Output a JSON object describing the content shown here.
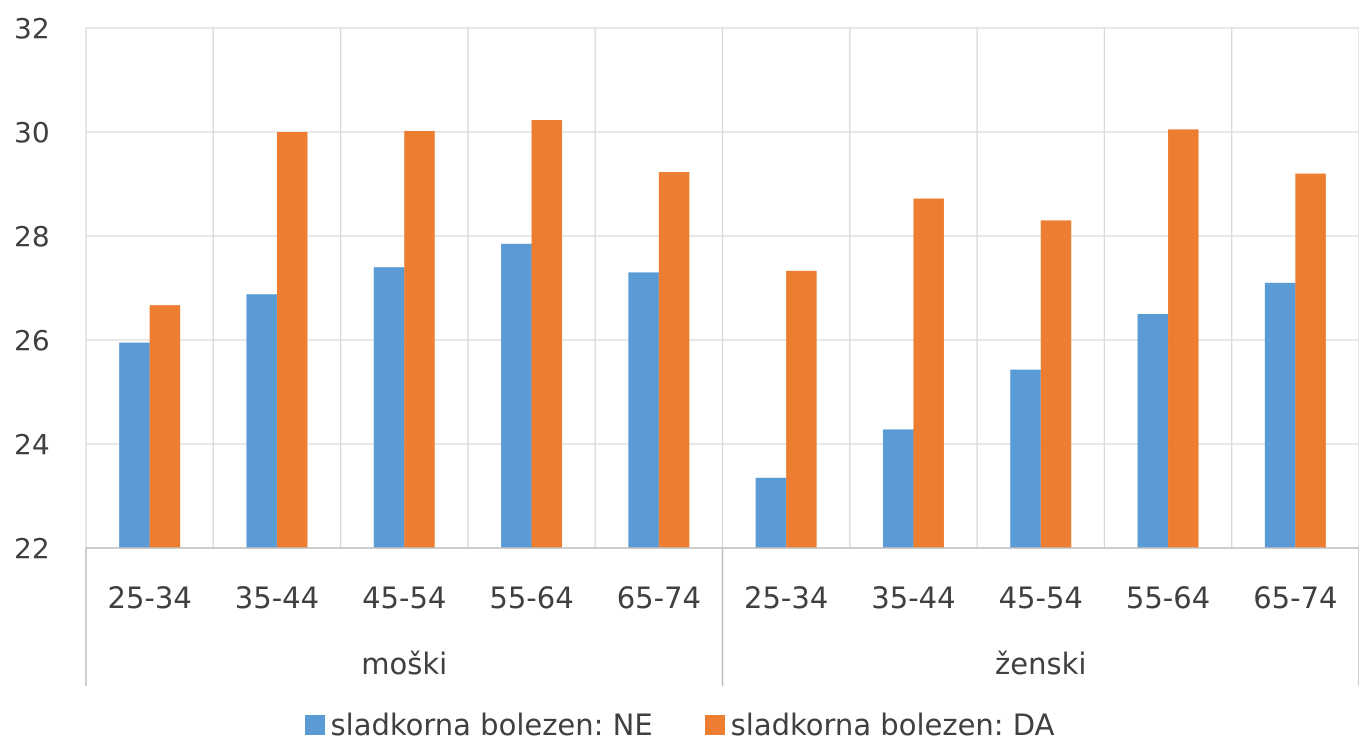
{
  "chart_data": {
    "type": "bar",
    "groups": [
      {
        "label": "moški",
        "categories": [
          "25-34",
          "35-44",
          "45-54",
          "55-64",
          "65-74"
        ]
      },
      {
        "label": "ženski",
        "categories": [
          "25-34",
          "35-44",
          "45-54",
          "55-64",
          "65-74"
        ]
      }
    ],
    "series": [
      {
        "name": "sladkorna bolezen: NE",
        "color": "#5B9BD5",
        "values": [
          25.95,
          26.88,
          27.4,
          27.85,
          27.3,
          23.35,
          24.28,
          25.43,
          26.5,
          27.1
        ]
      },
      {
        "name": "sladkorna bolezen: DA",
        "color": "#ED7D31",
        "values": [
          26.67,
          30.0,
          30.02,
          30.23,
          29.23,
          27.33,
          28.72,
          28.3,
          30.05,
          29.2
        ]
      }
    ],
    "ylim": [
      22,
      32
    ],
    "yticks": [
      22,
      24,
      26,
      28,
      30,
      32
    ],
    "grid": true,
    "legend": "bottom"
  }
}
